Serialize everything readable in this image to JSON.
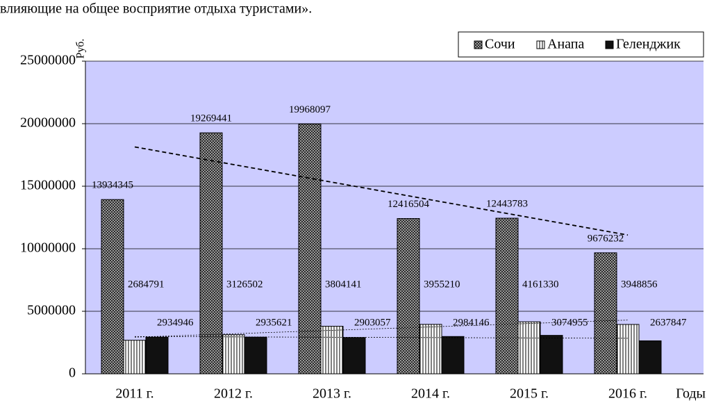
{
  "document_text": "влияющие на общее восприятие отдыха туристами».",
  "chart_data": {
    "type": "bar",
    "y_label": "Руб.",
    "x_label": "Годы",
    "categories": [
      "2011 г.",
      "2012 г.",
      "2013 г.",
      "2014 г.",
      "2015 г.",
      "2016 г."
    ],
    "series": [
      {
        "name": "Сочи",
        "color": "#3c3c3c",
        "pattern": "crosshatch",
        "trendline": "dashed",
        "values": [
          13934345,
          19269441,
          19968097,
          12416504,
          12443783,
          9676232
        ]
      },
      {
        "name": "Анапа",
        "color": "#ffffff",
        "pattern": "vertical",
        "trendline": "dotted",
        "values": [
          2684791,
          3126502,
          3804141,
          3955210,
          4161330,
          3948856
        ]
      },
      {
        "name": "Геленджик",
        "color": "#111111",
        "pattern": "solid",
        "trendline": "dotted",
        "values": [
          2934946,
          2935621,
          2903057,
          2984146,
          3074955,
          2637847
        ]
      }
    ],
    "ylim": [
      0,
      25000000
    ],
    "yticks": [
      0,
      5000000,
      10000000,
      15000000,
      20000000,
      25000000
    ],
    "grid": true,
    "background": "#ccccff",
    "legend": "top-right"
  }
}
